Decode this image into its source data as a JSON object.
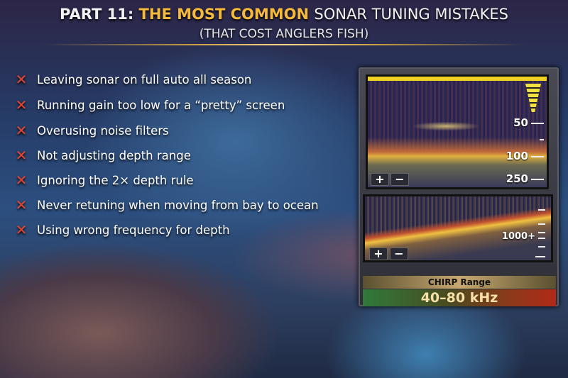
{
  "header": {
    "prefix": "PART 11:",
    "highlight": "THE MOST COMMON",
    "suffix": "SONAR TUNING MISTAKES",
    "subtitle": "(THAT COST ANGLERS FISH)"
  },
  "mistakes": [
    "Leaving sonar on full auto all season",
    "Running gain too low for a “pretty” screen",
    "Overusing noise filters",
    "Not adjusting depth range",
    "Ignoring the 2× depth rule",
    "Never retuning when moving from bay to ocean",
    "Using wrong frequency for depth"
  ],
  "icons": {
    "mistake": "x-mark-icon"
  },
  "sonar": {
    "top_depth_labels": [
      "50",
      "100",
      "250"
    ],
    "bottom_depth_label": "1000+",
    "zoom_in": "+",
    "zoom_out": "−",
    "range_label": "CHIRP Range",
    "range_value": "40–80 kHz"
  },
  "colors": {
    "accent": "#f5b93c",
    "mistake": "#e8452e"
  }
}
